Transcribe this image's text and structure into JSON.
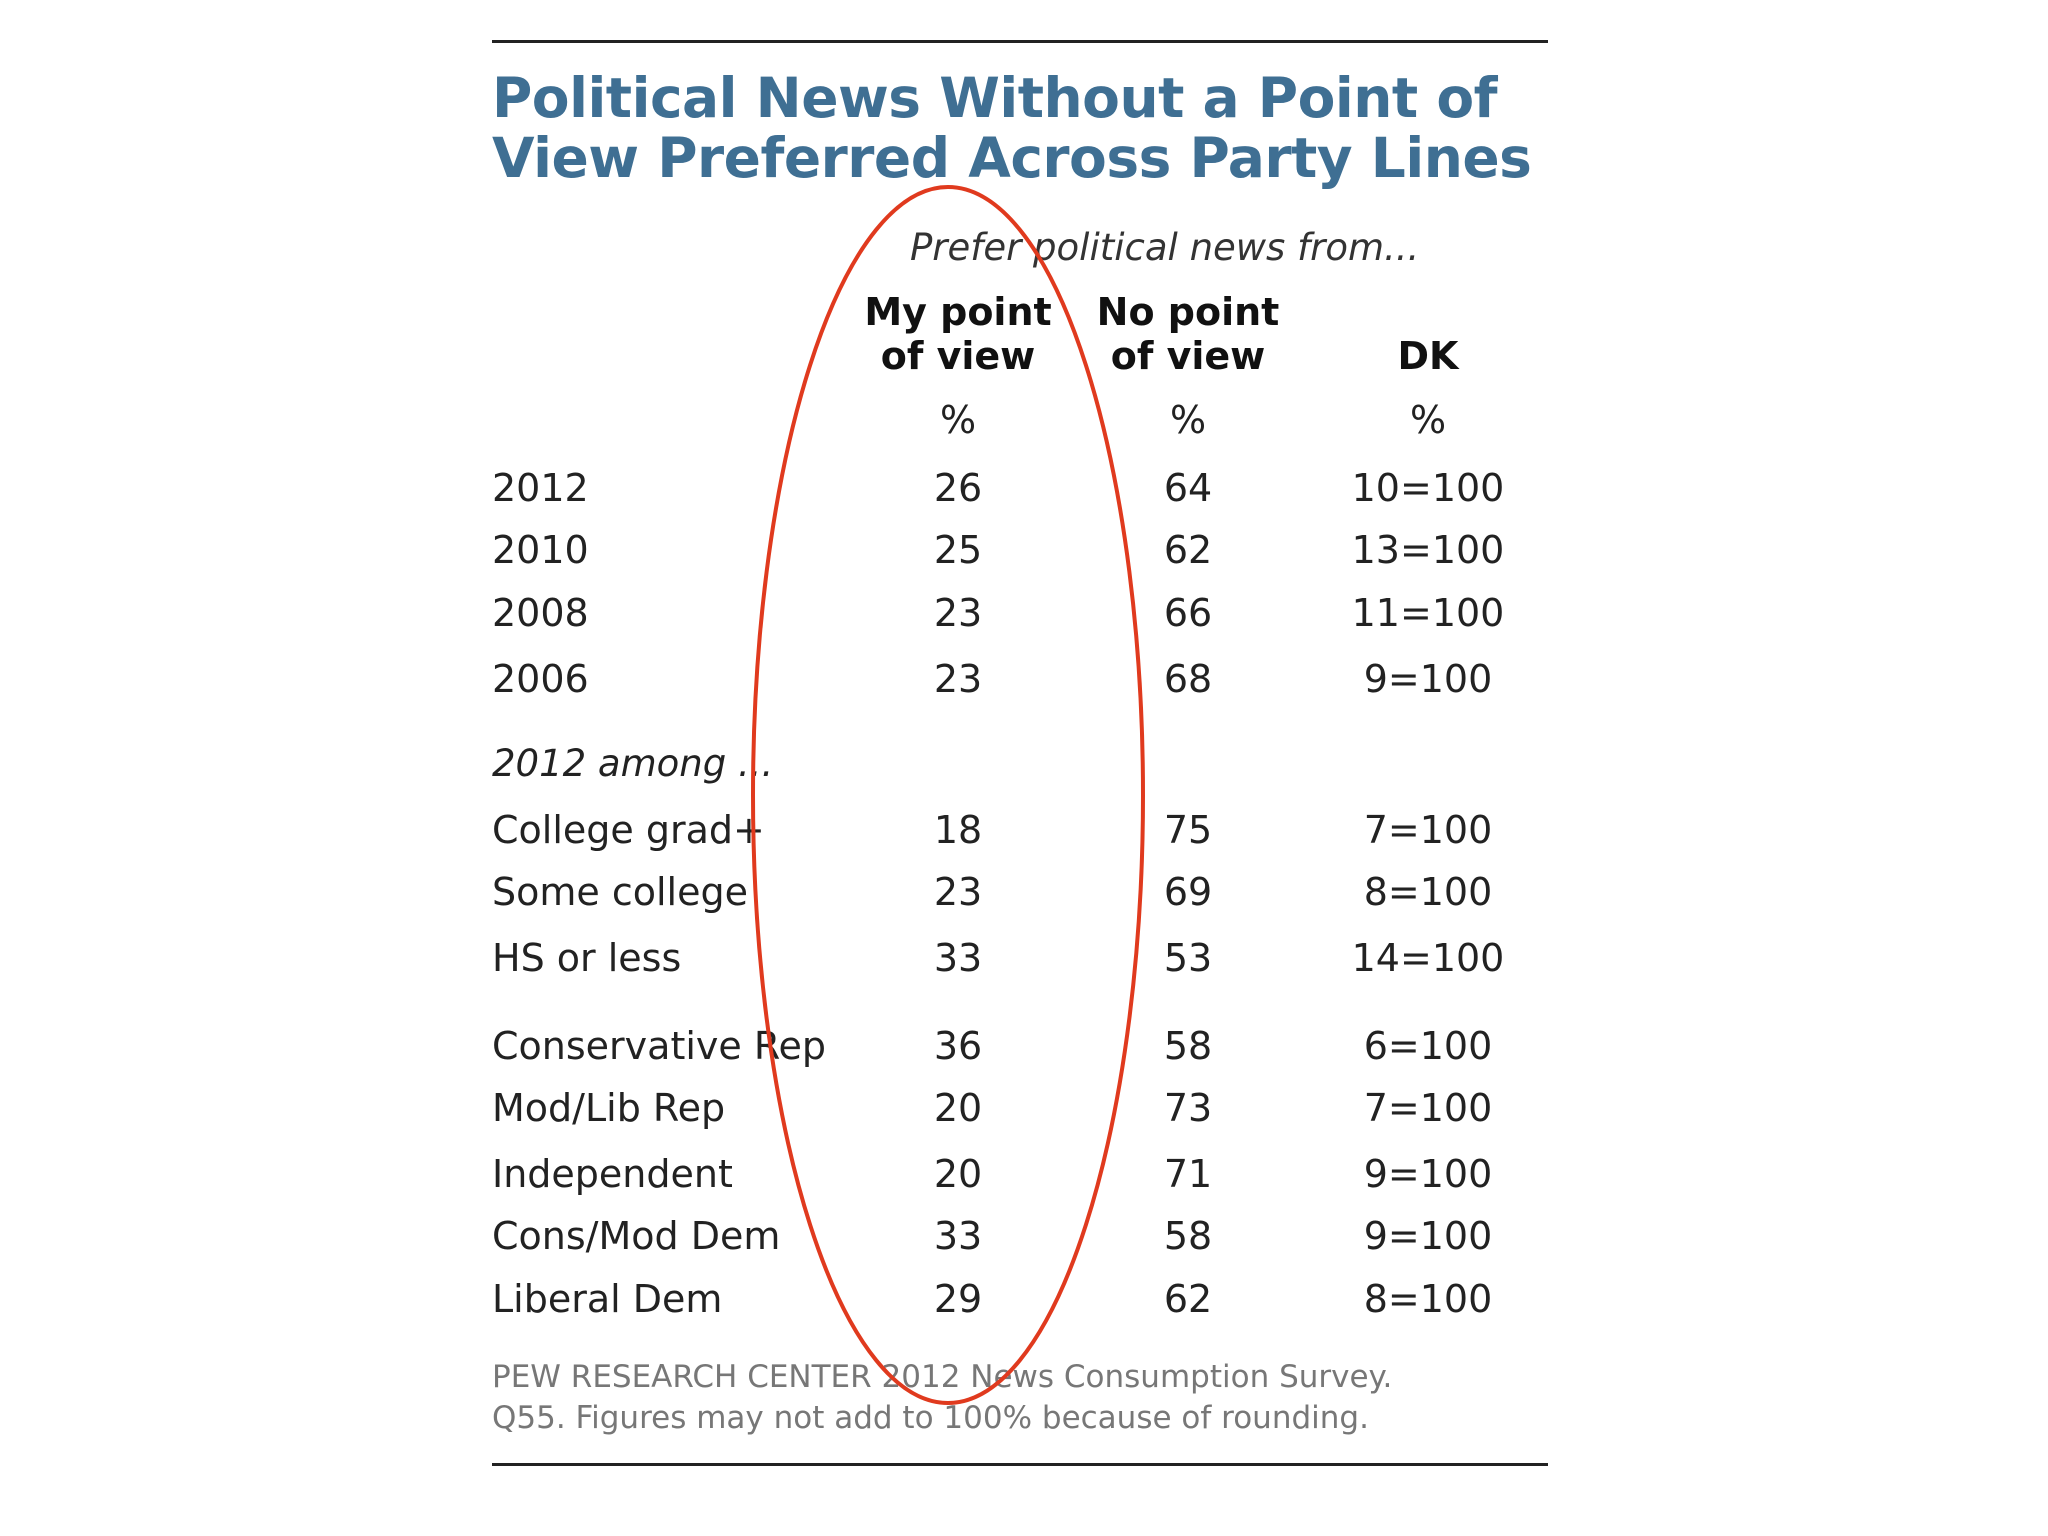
{
  "chart_data": {
    "type": "table",
    "title_lines": [
      "Political News Without a Point of",
      "View Preferred Across Party Lines"
    ],
    "subtitle": "Prefer political news from...",
    "columns": [
      {
        "header_lines": [
          "My point",
          "of view"
        ],
        "unit": "%"
      },
      {
        "header_lines": [
          "No point",
          "of view"
        ],
        "unit": "%"
      },
      {
        "header_lines": [
          "",
          "DK"
        ],
        "unit": "%"
      }
    ],
    "section_label": "2012 among ...",
    "groups": [
      {
        "rows": [
          {
            "label": "2012",
            "values": [
              "26",
              "64",
              "10=100"
            ]
          },
          {
            "label": "2010",
            "values": [
              "25",
              "62",
              "13=100"
            ]
          },
          {
            "label": "2008",
            "values": [
              "23",
              "66",
              "11=100"
            ]
          },
          {
            "label": "2006",
            "values": [
              "23",
              "68",
              "9=100"
            ]
          }
        ]
      },
      {
        "rows": [
          {
            "label": "College grad+",
            "values": [
              "18",
              "75",
              "7=100"
            ]
          },
          {
            "label": "Some college",
            "values": [
              "23",
              "69",
              "8=100"
            ]
          },
          {
            "label": "HS or less",
            "values": [
              "33",
              "53",
              "14=100"
            ]
          }
        ]
      },
      {
        "rows": [
          {
            "label": "Conservative Rep",
            "values": [
              "36",
              "58",
              "6=100"
            ]
          },
          {
            "label": "Mod/Lib Rep",
            "values": [
              "20",
              "73",
              "7=100"
            ]
          },
          {
            "label": "Independent",
            "values": [
              "20",
              "71",
              "9=100"
            ]
          },
          {
            "label": "Cons/Mod Dem",
            "values": [
              "33",
              "58",
              "9=100"
            ]
          },
          {
            "label": "Liberal Dem",
            "values": [
              "29",
              "62",
              "8=100"
            ]
          }
        ]
      }
    ],
    "source_lines": [
      "PEW RESEARCH CENTER 2012 News Consumption Survey.",
      "Q55. Figures may not add to 100% because of rounding."
    ],
    "highlighted_column": 0
  },
  "colors": {
    "title": "#3f6f93",
    "text": "#222222",
    "source": "#777777",
    "annotation": "#e03a1e"
  }
}
